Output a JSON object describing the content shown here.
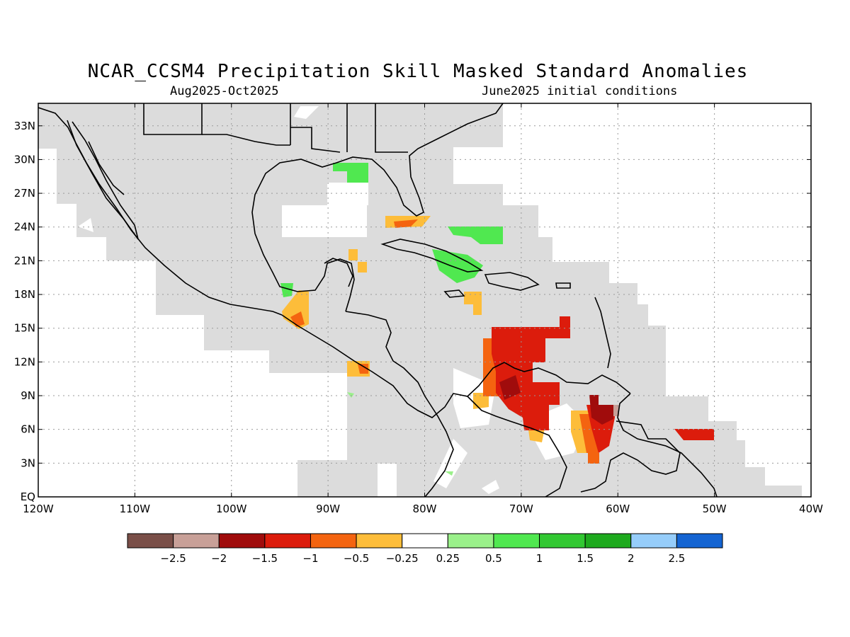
{
  "title": "NCAR_CCSM4 Precipitation Skill Masked Standard Anomalies",
  "period": "Aug2025-Oct2025",
  "initial_conditions": "June2025 initial conditions",
  "map": {
    "lon_range": [
      -120,
      -40
    ],
    "lat_range": [
      0,
      35
    ],
    "gridlines": "dotted",
    "masked_color": "#dcdcdc"
  },
  "axes": {
    "lat_labels": [
      "EQ",
      "3N",
      "6N",
      "9N",
      "12N",
      "15N",
      "18N",
      "21N",
      "24N",
      "27N",
      "30N",
      "33N"
    ],
    "lat_values": [
      0,
      3,
      6,
      9,
      12,
      15,
      18,
      21,
      24,
      27,
      30,
      33
    ],
    "lon_labels": [
      "120W",
      "110W",
      "100W",
      "90W",
      "80W",
      "70W",
      "60W",
      "50W",
      "40W"
    ],
    "lon_values": [
      -120,
      -110,
      -100,
      -90,
      -80,
      -70,
      -60,
      -50,
      -40
    ]
  },
  "colorbar": {
    "colors": [
      "#7a4f48",
      "#c8a098",
      "#a00c0c",
      "#dc1c0c",
      "#f46410",
      "#fdbd3a",
      "#ffffff",
      "#9af08a",
      "#50e850",
      "#32c832",
      "#1eaa1e",
      "#96cdfa",
      "#1464d2"
    ],
    "labels": [
      "−2.5",
      "−2",
      "−1.5",
      "−1",
      "−0.5",
      "−0.25",
      "0.25",
      "0.5",
      "1",
      "1.5",
      "2",
      "2.5"
    ]
  }
}
